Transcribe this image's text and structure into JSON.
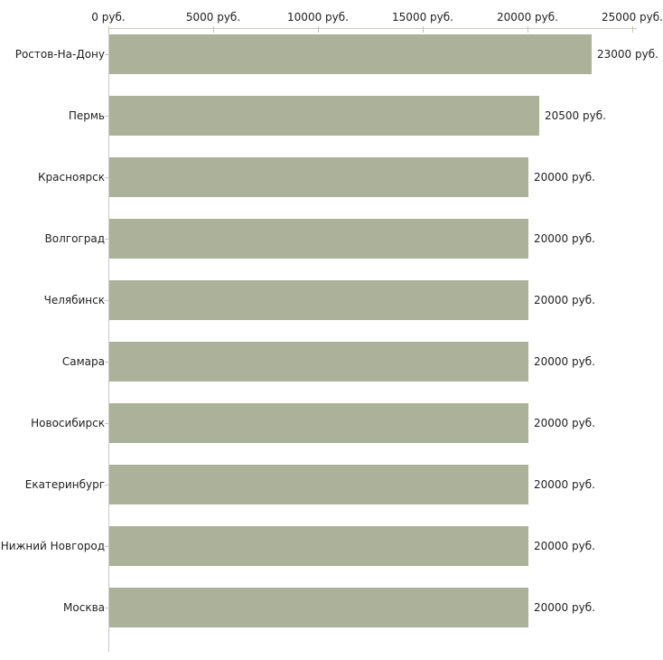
{
  "chart_data": {
    "type": "bar",
    "orientation": "horizontal",
    "title": "",
    "xlabel": "",
    "ylabel": "",
    "unit": "руб.",
    "categories": [
      "Ростов-На-Дону",
      "Пермь",
      "Красноярск",
      "Волгоград",
      "Челябинск",
      "Самара",
      "Новосибирск",
      "Екатеринбург",
      "Нижний Новгород",
      "Москва"
    ],
    "values": [
      23000,
      20500,
      20000,
      20000,
      20000,
      20000,
      20000,
      20000,
      20000,
      20000
    ],
    "value_labels": [
      "23000 руб.",
      "20500 руб.",
      "20000 руб.",
      "20000 руб.",
      "20000 руб.",
      "20000 руб.",
      "20000 руб.",
      "20000 руб.",
      "20000 руб.",
      "20000 руб."
    ],
    "x_tick_values": [
      0,
      5000,
      10000,
      15000,
      20000,
      25000
    ],
    "x_tick_labels": [
      "0 руб.",
      "5000 руб.",
      "10000 руб.",
      "15000 руб.",
      "20000 руб.",
      "25000 руб."
    ],
    "xlim": [
      0,
      25000
    ],
    "grid": false,
    "legend": "none",
    "colors": {
      "bar": "#abb299",
      "axis": "#c9c9c2",
      "tick": "#c3c6b6",
      "text": "#1f1f1f",
      "background": "#ffffff"
    }
  }
}
